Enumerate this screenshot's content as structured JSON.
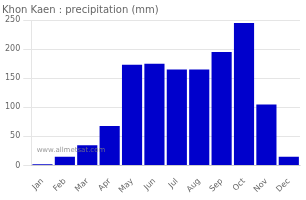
{
  "chart_data": {
    "type": "bar",
    "title": "Khon Kaen : precipitation (mm)",
    "categories": [
      "Jan",
      "Feb",
      "Mar",
      "Apr",
      "May",
      "Jun",
      "Jul",
      "Aug",
      "Sep",
      "Oct",
      "Nov",
      "Dec"
    ],
    "values": [
      2,
      15,
      35,
      68,
      173,
      175,
      165,
      165,
      195,
      245,
      105,
      15
    ],
    "color": "#0000cc",
    "ylim": [
      0,
      250
    ],
    "yticks": [
      0,
      50,
      100,
      150,
      200,
      250
    ],
    "grid": true,
    "annotations": [
      "www.allmetsat.com"
    ]
  }
}
